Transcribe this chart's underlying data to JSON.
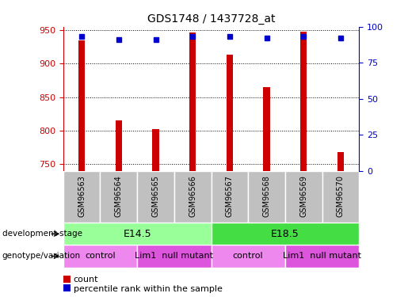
{
  "title": "GDS1748 / 1437728_at",
  "samples": [
    "GSM96563",
    "GSM96564",
    "GSM96565",
    "GSM96566",
    "GSM96567",
    "GSM96568",
    "GSM96569",
    "GSM96570"
  ],
  "counts": [
    935,
    815,
    802,
    947,
    913,
    865,
    948,
    768
  ],
  "percentiles": [
    93,
    91,
    91,
    93,
    93,
    92,
    93,
    92
  ],
  "ylim_left": [
    740,
    955
  ],
  "ylim_right": [
    0,
    100
  ],
  "yticks_left": [
    750,
    800,
    850,
    900,
    950
  ],
  "yticks_right": [
    0,
    25,
    50,
    75,
    100
  ],
  "bar_color": "#cc0000",
  "dot_color": "#0000cc",
  "bar_bottom": 740,
  "bar_width": 0.18,
  "dev_stage_groups": [
    {
      "label": "E14.5",
      "start": 0,
      "end": 4,
      "color": "#99ff99"
    },
    {
      "label": "E18.5",
      "start": 4,
      "end": 8,
      "color": "#44dd44"
    }
  ],
  "genotype_groups": [
    {
      "label": "control",
      "start": 0,
      "end": 2,
      "color": "#ee88ee"
    },
    {
      "label": "Lim1  null mutant",
      "start": 2,
      "end": 4,
      "color": "#dd55dd"
    },
    {
      "label": "control",
      "start": 4,
      "end": 6,
      "color": "#ee88ee"
    },
    {
      "label": "Lim1  null mutant",
      "start": 6,
      "end": 8,
      "color": "#dd55dd"
    }
  ],
  "xlabel_dev": "development stage",
  "xlabel_geno": "genotype/variation",
  "legend_count": "count",
  "legend_pct": "percentile rank within the sample",
  "sample_box_color": "#c0c0c0",
  "grid_linestyle": "dotted"
}
